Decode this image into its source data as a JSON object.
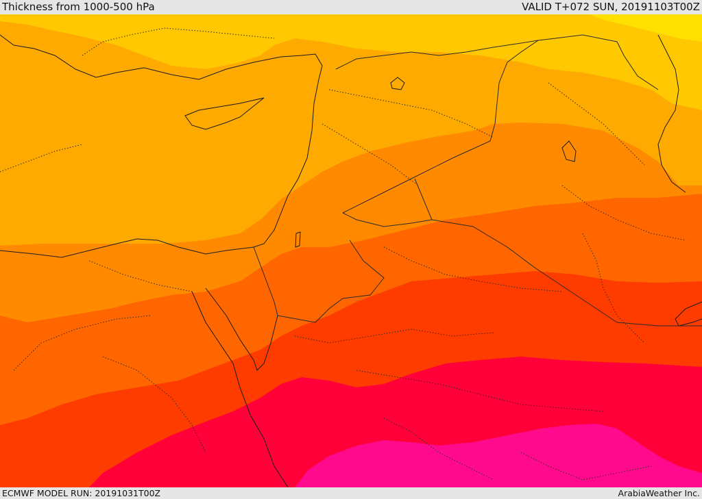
{
  "header": {
    "title": "Thickness from 1000-500 hPa",
    "valid": "VALID T+072 SUN, 20191103T00Z"
  },
  "footer": {
    "model_run": "ECMWF MODEL RUN: 20191031T00Z",
    "credit": "ArabiaWeather Inc."
  },
  "colors": {
    "band_1": "#ffe000",
    "band_2": "#ffc800",
    "band_3": "#ffaa00",
    "band_4": "#ff8a00",
    "band_5": "#ff6600",
    "band_6": "#ff3c00",
    "band_7": "#ff0038",
    "band_8": "#ff0a8c",
    "coast": "#1a1a1a",
    "border": "#2a2a2a",
    "frame": "#e6e6e6"
  }
}
